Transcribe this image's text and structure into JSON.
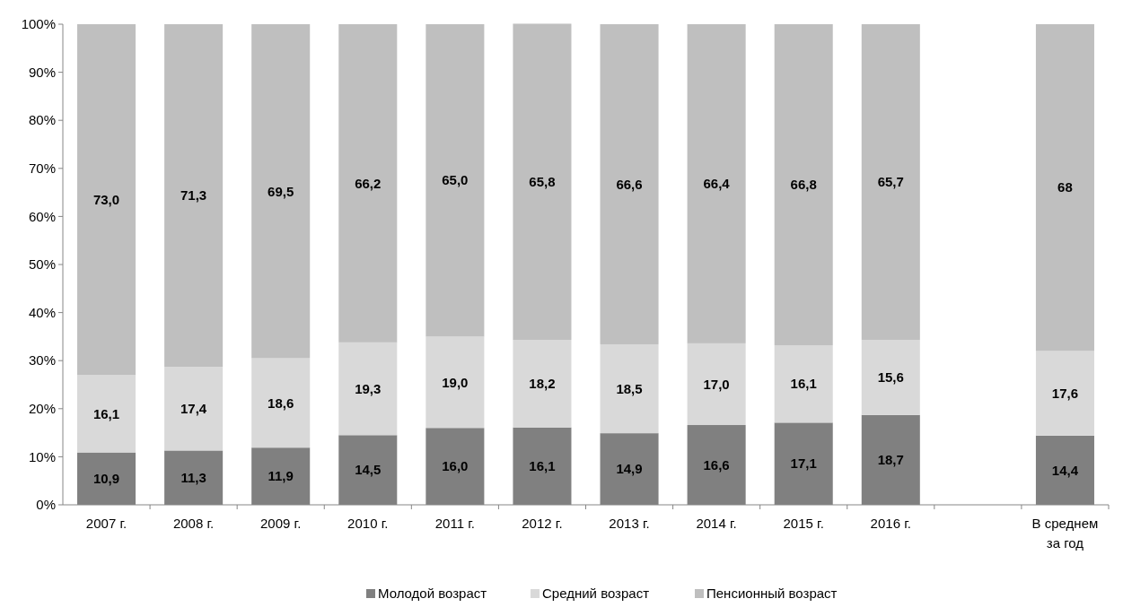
{
  "chart_data": {
    "type": "bar",
    "stacked": true,
    "categories": [
      "2007 г.",
      "2008 г.",
      "2009 г.",
      "2010 г.",
      "2011 г.",
      "2012 г.",
      "2013 г.",
      "2014 г.",
      "2015 г.",
      "2016 г.",
      null,
      "В среднем за год"
    ],
    "series": [
      {
        "name": "Молодой возраст",
        "color": "#808080",
        "values": [
          10.9,
          11.3,
          11.9,
          14.5,
          16.0,
          16.1,
          14.9,
          16.6,
          17.1,
          18.7,
          null,
          14.4
        ],
        "value_labels": [
          "10,9",
          "11,3",
          "11,9",
          "14,5",
          "16,0",
          "16,1",
          "14,9",
          "16,6",
          "17,1",
          "18,7",
          null,
          "14,4"
        ]
      },
      {
        "name": "Средний возраст",
        "color": "#d9d9d9",
        "values": [
          16.1,
          17.4,
          18.6,
          19.3,
          19.0,
          18.2,
          18.5,
          17.0,
          16.1,
          15.6,
          null,
          17.6
        ],
        "value_labels": [
          "16,1",
          "17,4",
          "18,6",
          "19,3",
          "19,0",
          "18,2",
          "18,5",
          "17,0",
          "16,1",
          "15,6",
          null,
          "17,6"
        ]
      },
      {
        "name": "Пенсионный возраст",
        "color": "#bfbfbf",
        "values": [
          73.0,
          71.3,
          69.5,
          66.2,
          65.0,
          65.8,
          66.6,
          66.4,
          66.8,
          65.7,
          null,
          68
        ],
        "value_labels": [
          "73,0",
          "71,3",
          "69,5",
          "66,2",
          "65,0",
          "65,8",
          "66,6",
          "66,4",
          "66,8",
          "65,7",
          null,
          "68"
        ]
      }
    ],
    "ylim": [
      0,
      100
    ],
    "yticks": [
      {
        "value": 0,
        "label": "0%"
      },
      {
        "value": 10,
        "label": "10%"
      },
      {
        "value": 20,
        "label": "20%"
      },
      {
        "value": 30,
        "label": "30%"
      },
      {
        "value": 40,
        "label": "40%"
      },
      {
        "value": 50,
        "label": "50%"
      },
      {
        "value": 60,
        "label": "60%"
      },
      {
        "value": 70,
        "label": "70%"
      },
      {
        "value": 80,
        "label": "80%"
      },
      {
        "value": 90,
        "label": "90%"
      },
      {
        "value": 100,
        "label": "100%"
      }
    ],
    "grid": false,
    "legend": "bottom"
  }
}
